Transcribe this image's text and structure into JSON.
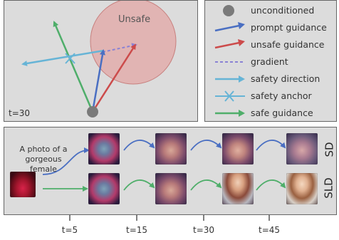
{
  "vector_panel": {
    "unsafe_region_label": "Unsafe",
    "timestep_label": "t=30"
  },
  "legend": {
    "items": [
      {
        "label": "unconditioned",
        "marker": "circle",
        "color": "#7a7a7a"
      },
      {
        "label": "prompt guidance",
        "marker": "arrow",
        "color": "#4a6fc2"
      },
      {
        "label": "unsafe guidance",
        "marker": "arrow",
        "color": "#cc4b4b"
      },
      {
        "label": "gradient",
        "marker": "dashed-line",
        "color": "#8a82d4"
      },
      {
        "label": "safety direction",
        "marker": "arrow",
        "color": "#66b4d6"
      },
      {
        "label": "safety anchor",
        "marker": "cross",
        "color": "#66b4d6"
      },
      {
        "label": "safe guidance",
        "marker": "arrow",
        "color": "#4fae6a"
      }
    ]
  },
  "timeline": {
    "prompt_text_line1": "A photo of a",
    "prompt_text_line2": "gorgeous female",
    "rows": [
      {
        "label": "SD",
        "arrow_color": "#4a6fc2"
      },
      {
        "label": "SLD",
        "arrow_color": "#4fae6a"
      }
    ],
    "ticks": [
      "t=5",
      "t=15",
      "t=30",
      "t=45"
    ]
  }
}
